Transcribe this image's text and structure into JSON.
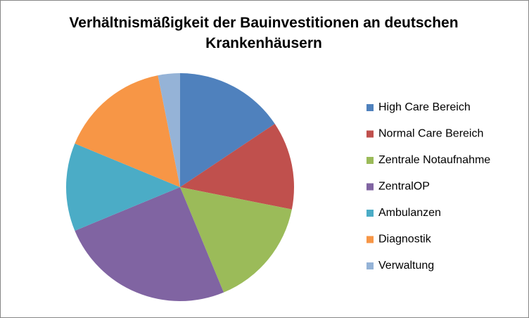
{
  "chart_data": {
    "type": "pie",
    "title": "Verhältnismäßigkeit der Bauinvestitionen an deutschen Krankenhäusern",
    "categories": [
      "High Care Bereich",
      "Normal Care Bereich",
      "Zentrale Notaufnahme",
      "ZentralOP",
      "Ambulanzen",
      "Diagnostik",
      "Verwaltung"
    ],
    "values": [
      5,
      4,
      5,
      8,
      4,
      5,
      1
    ],
    "colors": [
      "#4f81bd",
      "#c0504d",
      "#9bbb59",
      "#8064a2",
      "#4bacc6",
      "#f79646",
      "#95b3d7"
    ],
    "legend": "right"
  }
}
